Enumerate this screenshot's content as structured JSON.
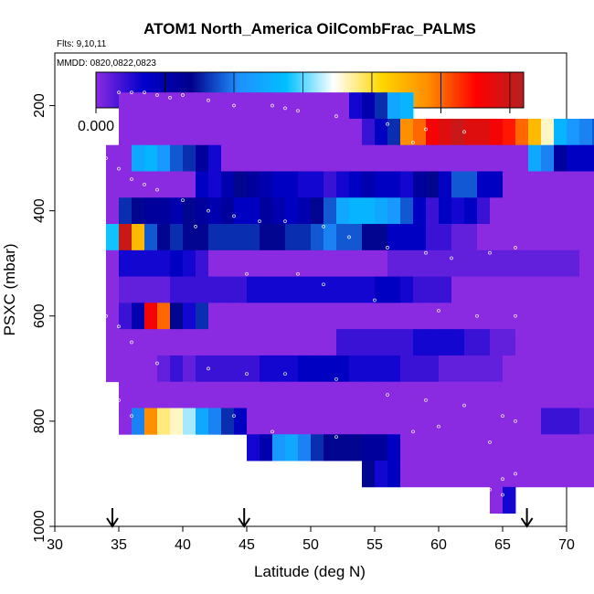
{
  "chart_data": {
    "type": "heatmap",
    "title": "ATOM1 North_America OilCombFrac_PALMS",
    "flights_label": "Flts: 9,10,11",
    "dates_label": "MMDD: 0820,0822,0823",
    "xlabel": "Latitude (deg N)",
    "ylabel": "PSXC (mbar)",
    "xlim": [
      30,
      70
    ],
    "ylim": [
      1000,
      100
    ],
    "xticks": [
      "30",
      "35",
      "40",
      "45",
      "50",
      "55",
      "60",
      "65",
      "70"
    ],
    "yticks": [
      "200",
      "400",
      "600",
      "800",
      "1000"
    ],
    "colorbar": {
      "range": [
        0.0,
        0.031
      ],
      "ticks": [
        "0.000",
        "0.005",
        "0.010",
        "0.015",
        "0.020",
        "0.025",
        "0.030"
      ],
      "colors": [
        "#8a2be2",
        "#0000cd",
        "#00008b",
        "#1e90ff",
        "#00bfff",
        "#ffffff",
        "#ffd700",
        "#ff8c00",
        "#ff0000",
        "#b22222"
      ]
    },
    "arrows_latitude": [
      34.5,
      44.8,
      66.9
    ],
    "cell_size": {
      "dlat": 1.0,
      "dp": 50
    },
    "rows": [
      {
        "p": 200,
        "lat0": 35,
        "vals": [
          0,
          0,
          0,
          0,
          0,
          0,
          0,
          0,
          0,
          0,
          0,
          0,
          0,
          0,
          0,
          0,
          0,
          0,
          0.003,
          0.005,
          0.008,
          0.012,
          0.013
        ]
      },
      {
        "p": 250,
        "lat0": 35,
        "vals": [
          0,
          0,
          0,
          0,
          0,
          0,
          0,
          0,
          0,
          0,
          0,
          0,
          0,
          0,
          0,
          0,
          0,
          0,
          0,
          0.002,
          0.004,
          0.008,
          0.024,
          0.025,
          0.028,
          0.029,
          0.03,
          0.029,
          0.029,
          0.028,
          0.027,
          0.025,
          0.022,
          0.018,
          0.013,
          0.011,
          0.01,
          0.009,
          0.008,
          0.007,
          0.006,
          0.005,
          0.005,
          0.004,
          0.004,
          0.003,
          0.002,
          0.015
        ]
      },
      {
        "p": 300,
        "lat0": 34,
        "vals": [
          0,
          0,
          0.012,
          0.013,
          0.011,
          0.009,
          0.008,
          0.006,
          0.003,
          0,
          0,
          0,
          0,
          0,
          0,
          0,
          0,
          0,
          0,
          0,
          0,
          0,
          0,
          0,
          0,
          0,
          0,
          0,
          0,
          0,
          0,
          0,
          0,
          0.012,
          0.01,
          0.006,
          0.004,
          0.004,
          0.004,
          0.004,
          0.004,
          0.004,
          0.004,
          0.004,
          0.004,
          0.004,
          0.004,
          0.004,
          0.01
        ]
      },
      {
        "p": 350,
        "lat0": 34,
        "vals": [
          0,
          0,
          0,
          0,
          0,
          0,
          0,
          0.004,
          0.003,
          0.005,
          0.007,
          0.006,
          0.005,
          0.004,
          0.004,
          0.003,
          0.003,
          0.002,
          0.003,
          0.004,
          0.005,
          0.004,
          0.004,
          0.003,
          0.006,
          0.007,
          0.004,
          0.009,
          0.009,
          0.004,
          0.004,
          0,
          0,
          0,
          0,
          0,
          0,
          0,
          0,
          0,
          0,
          0,
          0,
          0,
          0,
          0,
          0,
          0.006,
          0.008
        ]
      },
      {
        "p": 400,
        "lat0": 34,
        "vals": [
          0,
          0.008,
          0.007,
          0.006,
          0.006,
          0.005,
          0.007,
          0.006,
          0.005,
          0.006,
          0.004,
          0.004,
          0.006,
          0.005,
          0.004,
          0.005,
          0.007,
          0.009,
          0.012,
          0.013,
          0.013,
          0.012,
          0.011,
          0.009,
          0.004,
          0.002,
          0.004,
          0.003,
          0.004,
          0.002,
          0,
          0,
          0,
          0,
          0,
          0,
          0,
          0,
          0,
          0,
          0,
          0,
          0,
          0,
          0,
          0,
          0.004
        ]
      },
      {
        "p": 450,
        "lat0": 34,
        "vals": [
          0.014,
          0.03,
          0.022,
          0.009,
          0.007,
          0.008,
          0.007,
          0.007,
          0.008,
          0.008,
          0.008,
          0.008,
          0.007,
          0.007,
          0.008,
          0.008,
          0.009,
          0.01,
          0.009,
          0.009,
          0.007,
          0.007,
          0.004,
          0.004,
          0.004,
          0.002,
          0.002,
          0.001,
          0.001,
          0,
          0,
          0,
          0,
          0,
          0,
          0,
          0,
          0,
          0,
          0,
          0,
          0,
          0,
          0,
          0,
          0,
          0.004
        ]
      },
      {
        "p": 500,
        "lat0": 34,
        "vals": [
          0,
          0.003,
          0.003,
          0.003,
          0.003,
          0.004,
          0.003,
          0.002,
          0,
          0,
          0,
          0,
          0,
          0,
          0,
          0,
          0,
          0,
          0,
          0,
          0,
          0,
          0.001,
          0.001,
          0.001,
          0.001,
          0.001,
          0.001,
          0.001,
          0.001,
          0.001,
          0.001,
          0.001,
          0.001,
          0.001,
          0.001,
          0.001,
          0,
          0,
          0,
          0,
          0,
          0,
          0,
          0,
          0,
          0
        ]
      },
      {
        "p": 550,
        "lat0": 34,
        "vals": [
          0,
          0.001,
          0.001,
          0.001,
          0.001,
          0.002,
          0.002,
          0.002,
          0.002,
          0.002,
          0.002,
          0.003,
          0.003,
          0.003,
          0.003,
          0.003,
          0.003,
          0.003,
          0.003,
          0.003,
          0.003,
          0.004,
          0.004,
          0.003,
          0.002,
          0.002,
          0.002,
          0,
          0,
          0,
          0,
          0,
          0,
          0,
          0,
          0,
          0,
          0,
          0,
          0,
          0,
          0,
          0,
          0,
          0,
          0,
          0
        ]
      },
      {
        "p": 600,
        "lat0": 34,
        "vals": [
          0,
          0.002,
          0.005,
          0.028,
          0.025,
          0.007,
          0.003,
          0.008,
          0,
          0,
          0,
          0,
          0,
          0,
          0,
          0,
          0,
          0,
          0,
          0,
          0,
          0,
          0,
          0,
          0,
          0,
          0,
          0,
          0,
          0,
          0,
          0,
          0,
          0,
          0,
          0,
          0,
          0,
          0,
          0,
          0,
          0,
          0,
          0,
          0,
          0,
          0
        ]
      },
      {
        "p": 650,
        "lat0": 34,
        "vals": [
          0,
          0,
          0,
          0,
          0,
          0,
          0,
          0,
          0,
          0,
          0,
          0,
          0,
          0,
          0,
          0,
          0,
          0,
          0.002,
          0.002,
          0.002,
          0.002,
          0.002,
          0.002,
          0.003,
          0.003,
          0.003,
          0.003,
          0.002,
          0.002,
          0.001,
          0.001,
          0,
          0,
          0,
          0,
          0,
          0,
          0,
          0,
          0,
          0,
          0,
          0,
          0,
          0,
          0
        ]
      },
      {
        "p": 700,
        "lat0": 34,
        "vals": [
          0,
          0,
          0,
          0,
          0.001,
          0.002,
          0.001,
          0.002,
          0.002,
          0.002,
          0.002,
          0.002,
          0.003,
          0.003,
          0.003,
          0.004,
          0.004,
          0.004,
          0.004,
          0.003,
          0.003,
          0.003,
          0.003,
          0.002,
          0.002,
          0.002,
          0.001,
          0.001,
          0.001,
          0.001,
          0.001,
          0,
          0,
          0,
          0,
          0,
          0,
          0,
          0,
          0,
          0,
          0,
          0,
          0,
          0,
          0,
          0
        ]
      },
      {
        "p": 750,
        "lat0": 35,
        "vals": [
          0,
          0,
          0,
          0,
          0,
          0,
          0,
          0,
          0,
          0,
          0,
          0,
          0,
          0,
          0,
          0,
          0,
          0,
          0,
          0,
          0,
          0,
          0,
          0,
          0,
          0,
          0,
          0,
          0,
          0,
          0,
          0,
          0,
          0,
          0,
          0,
          0,
          0,
          0,
          0,
          0,
          0,
          0,
          0,
          0,
          0
        ]
      },
      {
        "p": 800,
        "lat0": 35,
        "vals": [
          0,
          0.01,
          0.024,
          0.019,
          0.018,
          0.016,
          0.012,
          0.01,
          0.008,
          0.004,
          0.0,
          0,
          0,
          0,
          0,
          0,
          0,
          0,
          0,
          0,
          0,
          0,
          0,
          0,
          0,
          0,
          0,
          0,
          0,
          0,
          0,
          0,
          0,
          0.002,
          0.002,
          0.002,
          0.001,
          0.001,
          0.001,
          0.001,
          0.001,
          0.001,
          0.001,
          0.001,
          0.001,
          0.001
        ]
      },
      {
        "p": 850,
        "lat0": 45,
        "vals": [
          0.003,
          0.005,
          0.011,
          0.012,
          0.01,
          0.008,
          0.007,
          0.007,
          0.007,
          0.006,
          0.006,
          0.004,
          0,
          0,
          0,
          0,
          0,
          0,
          0,
          0,
          0,
          0,
          0,
          0,
          0,
          0,
          0,
          0,
          0,
          0,
          0,
          0,
          0,
          0,
          0.004,
          0.004,
          0.004,
          0.004,
          0.004,
          0.004,
          0.004,
          0.004,
          0.004,
          0.004,
          0.004,
          0.004
        ]
      },
      {
        "p": 900,
        "lat0": 54,
        "vals": [
          0.007,
          0.003,
          0.004,
          0,
          0,
          0,
          0,
          0,
          0,
          0,
          0,
          0,
          0,
          0,
          0,
          0,
          0,
          0,
          0,
          0,
          0,
          0,
          0,
          0,
          0,
          0,
          0,
          0,
          0,
          0,
          0,
          0,
          0,
          0,
          0,
          0,
          0,
          0,
          0,
          0,
          0,
          0,
          0,
          0,
          0,
          0.004,
          0.004,
          0.004,
          0.004,
          0.004
        ]
      },
      {
        "p": 950,
        "lat0": 64,
        "vals": [
          0,
          0.003
        ]
      }
    ],
    "points": [
      [
        35,
        175
      ],
      [
        36,
        175
      ],
      [
        37,
        175
      ],
      [
        38,
        180
      ],
      [
        39,
        185
      ],
      [
        40,
        180
      ],
      [
        42,
        190
      ],
      [
        44,
        200
      ],
      [
        47,
        200
      ],
      [
        48,
        205
      ],
      [
        49,
        210
      ],
      [
        52,
        220
      ],
      [
        56,
        235
      ],
      [
        59,
        245
      ],
      [
        62,
        250
      ],
      [
        58,
        270
      ],
      [
        34,
        300
      ],
      [
        35,
        320
      ],
      [
        36,
        340
      ],
      [
        38,
        360
      ],
      [
        40,
        380
      ],
      [
        42,
        400
      ],
      [
        44,
        410
      ],
      [
        46,
        420
      ],
      [
        48,
        420
      ],
      [
        51,
        430
      ],
      [
        53,
        450
      ],
      [
        56,
        470
      ],
      [
        59,
        480
      ],
      [
        61,
        490
      ],
      [
        64,
        480
      ],
      [
        66,
        470
      ],
      [
        37,
        350
      ],
      [
        41,
        430
      ],
      [
        45,
        520
      ],
      [
        49,
        520
      ],
      [
        51,
        540
      ],
      [
        55,
        570
      ],
      [
        60,
        590
      ],
      [
        63,
        600
      ],
      [
        66,
        600
      ],
      [
        34,
        600
      ],
      [
        35,
        620
      ],
      [
        36,
        650
      ],
      [
        38,
        690
      ],
      [
        42,
        700
      ],
      [
        45,
        710
      ],
      [
        48,
        710
      ],
      [
        52,
        720
      ],
      [
        56,
        750
      ],
      [
        59,
        760
      ],
      [
        62,
        770
      ],
      [
        65,
        790
      ],
      [
        66,
        800
      ],
      [
        34,
        740
      ],
      [
        35,
        760
      ],
      [
        36,
        790
      ],
      [
        44,
        790
      ],
      [
        47,
        820
      ],
      [
        52,
        830
      ],
      [
        58,
        820
      ],
      [
        60,
        810
      ],
      [
        64,
        840
      ],
      [
        66,
        900
      ],
      [
        65,
        910
      ],
      [
        64,
        930
      ],
      [
        65,
        940
      ]
    ]
  }
}
